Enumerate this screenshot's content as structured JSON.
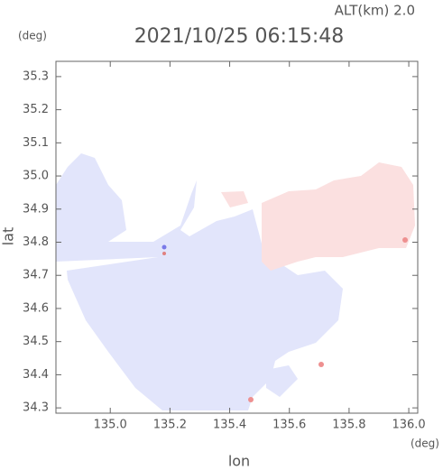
{
  "chart_data": {
    "type": "map",
    "title": "2021/10/25 06:15:48",
    "annotation": "ALT(km) 2.0",
    "y_unit": "(deg)",
    "x_unit": "(deg)",
    "xlabel": "lon",
    "ylabel": "lat",
    "xlim": [
      134.818,
      136.03
    ],
    "ylim": [
      34.284,
      35.346
    ],
    "xticks": [
      {
        "value": 135.0,
        "label": "135.0"
      },
      135.2,
      135.4,
      135.6,
      135.8,
      {
        "value": 136.0,
        "label": "136.0"
      }
    ],
    "yticks": [
      35.3,
      35.2,
      35.1,
      {
        "value": 35.0,
        "label": "35.0"
      },
      34.9,
      34.8,
      34.7,
      34.6,
      34.5,
      34.4,
      34.3
    ]
  }
}
